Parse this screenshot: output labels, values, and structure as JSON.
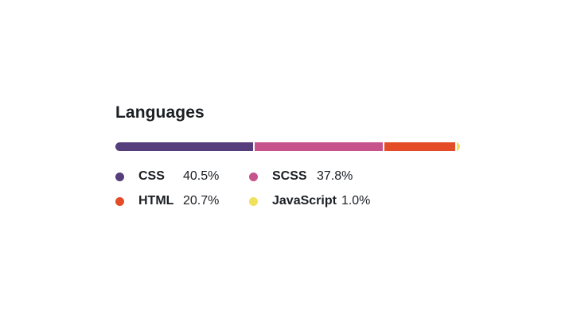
{
  "section": {
    "title": "Languages"
  },
  "colors": {
    "background": "#ffffff",
    "text": "#1b1f24"
  },
  "chart_data": {
    "type": "bar",
    "subtype": "stacked-percentage-bar",
    "title": "Languages",
    "total_percent": 100,
    "legend_position": "below",
    "legend_columns": 2,
    "series": [
      {
        "name": "CSS",
        "value": 40.5,
        "percent_label": "40.5%",
        "color": "#563d7c"
      },
      {
        "name": "SCSS",
        "value": 37.8,
        "percent_label": "37.8%",
        "color": "#c6538c"
      },
      {
        "name": "HTML",
        "value": 20.7,
        "percent_label": "20.7%",
        "color": "#e34c26"
      },
      {
        "name": "JavaScript",
        "value": 1.0,
        "percent_label": "1.0%",
        "color": "#f1e05a"
      }
    ]
  }
}
